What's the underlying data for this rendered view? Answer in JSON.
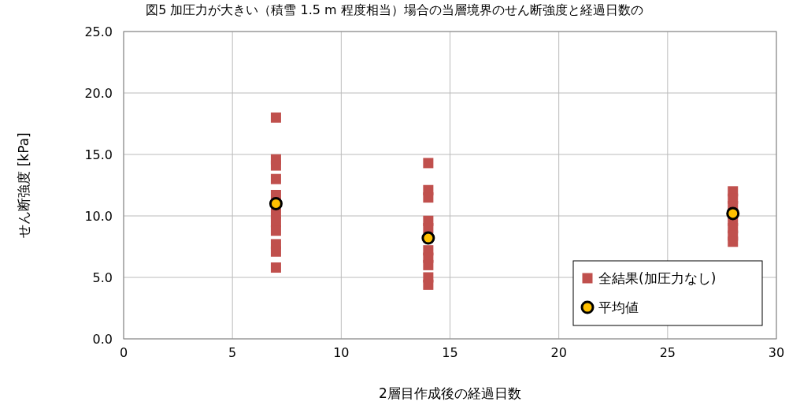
{
  "chart_data": {
    "type": "scatter",
    "title": "図5 加圧力が大きい（積雪 1.5 m 程度相当）場合の当層境界のせん断強度と経過日数の",
    "xlabel": "2層目作成後の経過日数",
    "ylabel": "せん断強度 [kPa]",
    "xlim": [
      0,
      30
    ],
    "xticks": [
      0,
      5,
      10,
      15,
      20,
      25,
      30
    ],
    "ylim": [
      0,
      25
    ],
    "yticks": [
      {
        "value": 0,
        "label": "0.0"
      },
      {
        "value": 5,
        "label": "5.0"
      },
      {
        "value": 10,
        "label": "10.0"
      },
      {
        "value": 15,
        "label": "15.0"
      },
      {
        "value": 20,
        "label": "20.0"
      },
      {
        "value": 25,
        "label": "25.0"
      }
    ],
    "grid": true,
    "legend": "bottom right",
    "series": [
      {
        "name": "全結果(加圧力なし)",
        "color": "#c0504d",
        "marker": "square",
        "x": [
          7,
          7,
          7,
          7,
          7,
          7,
          7,
          7,
          7,
          7,
          7,
          14,
          14,
          14,
          14,
          14,
          14,
          14,
          14,
          14,
          14,
          28,
          28,
          28,
          28,
          28,
          28,
          28
        ],
        "values": [
          18.0,
          14.6,
          14.1,
          13.0,
          11.7,
          10.2,
          9.5,
          8.8,
          7.7,
          7.1,
          5.8,
          14.3,
          12.1,
          11.5,
          9.6,
          9.0,
          7.2,
          6.6,
          6.0,
          5.0,
          4.4,
          12.0,
          11.4,
          10.8,
          9.6,
          9.0,
          8.4,
          7.9
        ]
      },
      {
        "name": "平均値",
        "color": "#ffc000",
        "marker": "circle",
        "x": [
          7,
          14,
          28
        ],
        "values": [
          11.0,
          8.2,
          10.2
        ]
      }
    ]
  }
}
